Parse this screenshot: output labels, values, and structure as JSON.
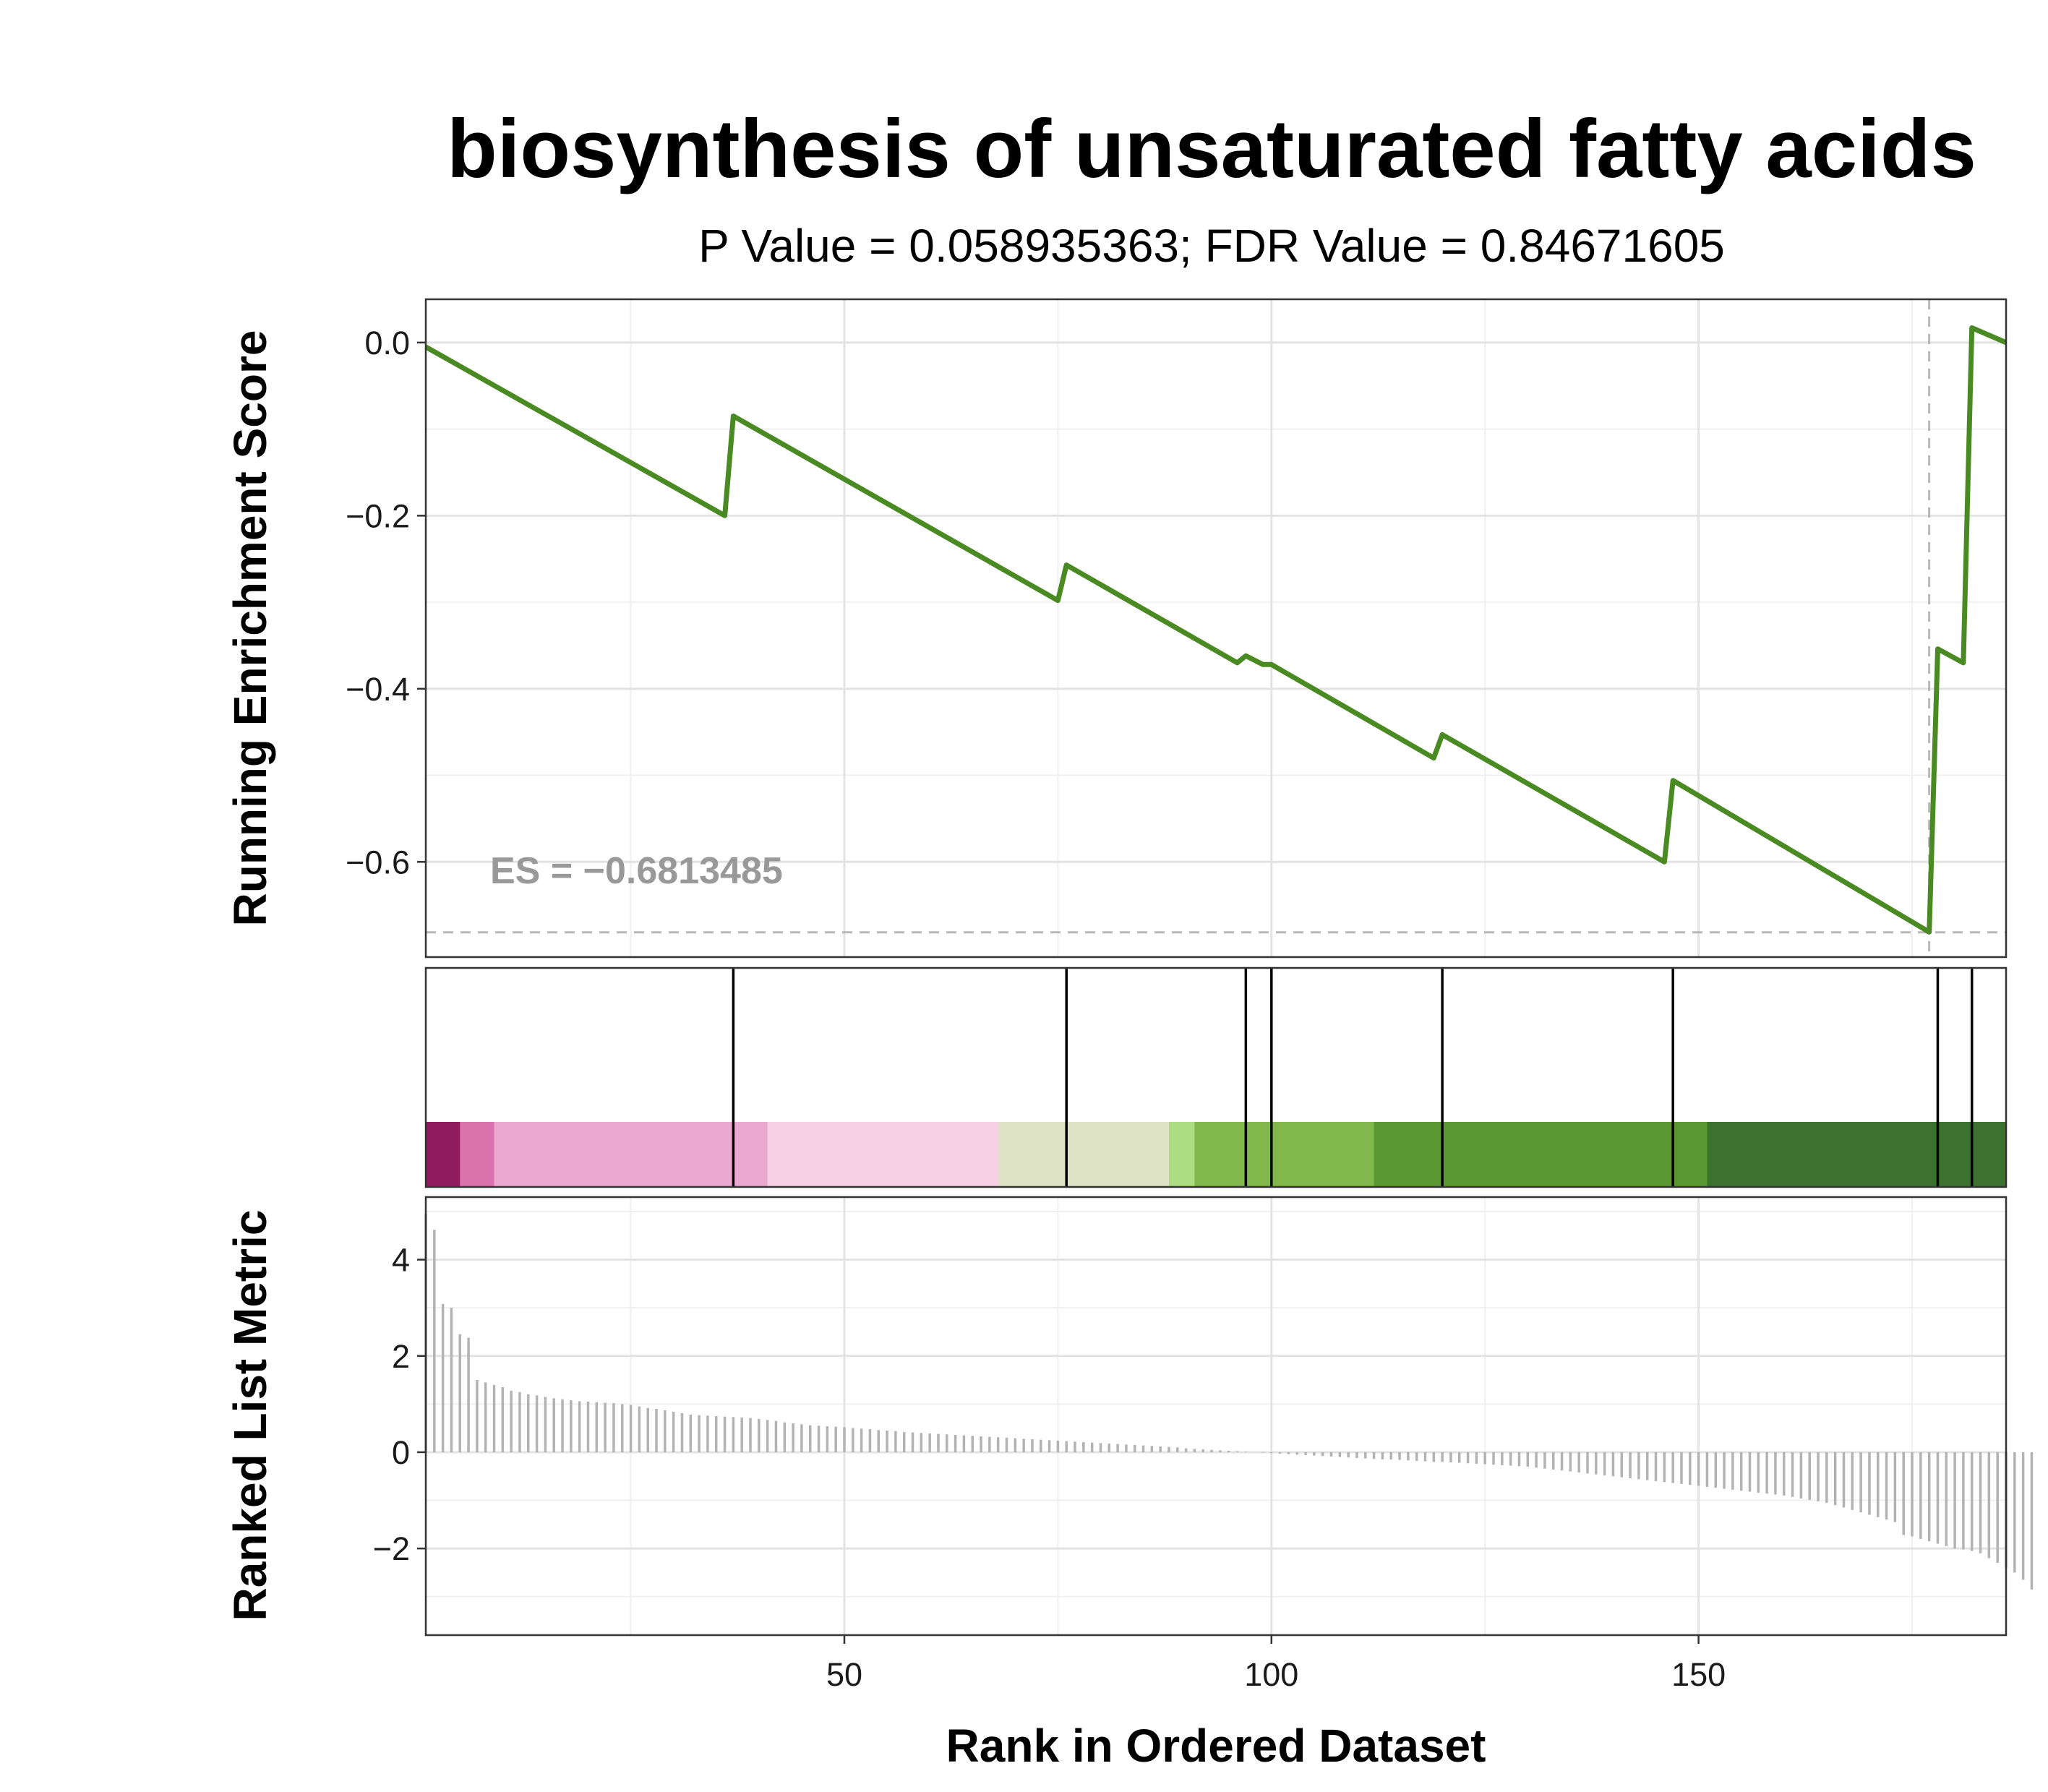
{
  "chart_data": {
    "type": "line",
    "title": "biosynthesis of unsaturated fatty acids",
    "subtitle": "P Value = 0.058935363; FDR Value = 0.84671605",
    "es_label": "ES = −0.6813485",
    "es_value": -0.6813485,
    "peak_rank": 177,
    "xlabel": "Rank in Ordered Dataset",
    "xlim": [
      1,
      186
    ],
    "x_ticks": [
      50,
      100,
      150
    ],
    "x_tick_labels": [
      "50",
      "100",
      "150"
    ],
    "panels": [
      {
        "name": "running-enrichment-score",
        "ylabel": "Running Enrichment Score",
        "ylim": [
          -0.71,
          0.05
        ],
        "y_ticks": [
          0.0,
          -0.2,
          -0.4,
          -0.6
        ],
        "y_tick_labels": [
          "0.0",
          "−0.2",
          "−0.4",
          "−0.6"
        ],
        "series": [
          {
            "color": "#4a8a22",
            "x": [
              1,
              36,
              37,
              75,
              76,
              96,
              97,
              99,
              100,
              119,
              120,
              146,
              147,
              177,
              178,
              181,
              182,
              186
            ],
            "y": [
              -0.005,
              -0.2,
              -0.085,
              -0.298,
              -0.257,
              -0.37,
              -0.362,
              -0.372,
              -0.372,
              -0.48,
              -0.453,
              -0.6,
              -0.506,
              -0.681,
              -0.354,
              -0.37,
              0.017,
              0.0
            ]
          }
        ]
      },
      {
        "name": "gene-hits",
        "hit_ranks": [
          37,
          76,
          97,
          100,
          120,
          147,
          178,
          182
        ],
        "heat_bands": [
          {
            "start": 1,
            "end": 5,
            "color": "#8e1b5d"
          },
          {
            "start": 5,
            "end": 9,
            "color": "#dc72ab"
          },
          {
            "start": 9,
            "end": 41,
            "color": "#eaa9cf"
          },
          {
            "start": 41,
            "end": 68,
            "color": "#f6d0e5"
          },
          {
            "start": 68,
            "end": 88,
            "color": "#e0e4c6"
          },
          {
            "start": 88,
            "end": 91,
            "color": "#addd82"
          },
          {
            "start": 91,
            "end": 112,
            "color": "#80b84c"
          },
          {
            "start": 112,
            "end": 151,
            "color": "#5a9733"
          },
          {
            "start": 151,
            "end": 186,
            "color": "#3c722d"
          }
        ]
      },
      {
        "name": "ranked-list-metric",
        "ylabel": "Ranked List Metric",
        "ylim": [
          -3.8,
          5.3
        ],
        "y_ticks": [
          4,
          2,
          0,
          -2
        ],
        "y_tick_labels": [
          "4",
          "2",
          "0",
          "−2"
        ],
        "bar_color": "#b3b3b3",
        "values": [
          4.95,
          4.62,
          3.08,
          3.0,
          2.45,
          2.38,
          1.5,
          1.45,
          1.4,
          1.35,
          1.28,
          1.25,
          1.2,
          1.18,
          1.15,
          1.12,
          1.1,
          1.08,
          1.06,
          1.05,
          1.04,
          1.03,
          1.02,
          1.0,
          0.98,
          0.95,
          0.92,
          0.9,
          0.87,
          0.84,
          0.81,
          0.78,
          0.77,
          0.76,
          0.75,
          0.74,
          0.73,
          0.72,
          0.71,
          0.69,
          0.67,
          0.65,
          0.62,
          0.6,
          0.58,
          0.56,
          0.55,
          0.54,
          0.53,
          0.52,
          0.5,
          0.49,
          0.48,
          0.46,
          0.45,
          0.44,
          0.42,
          0.41,
          0.4,
          0.39,
          0.38,
          0.37,
          0.36,
          0.35,
          0.34,
          0.33,
          0.32,
          0.31,
          0.3,
          0.29,
          0.28,
          0.27,
          0.26,
          0.25,
          0.24,
          0.23,
          0.22,
          0.21,
          0.2,
          0.19,
          0.18,
          0.17,
          0.16,
          0.15,
          0.14,
          0.13,
          0.12,
          0.11,
          0.1,
          0.08,
          0.07,
          0.06,
          0.05,
          0.04,
          0.03,
          0.02,
          0.01,
          0.0,
          -0.01,
          -0.02,
          -0.03,
          -0.04,
          -0.05,
          -0.06,
          -0.07,
          -0.08,
          -0.09,
          -0.1,
          -0.11,
          -0.12,
          -0.13,
          -0.14,
          -0.15,
          -0.15,
          -0.16,
          -0.17,
          -0.18,
          -0.19,
          -0.2,
          -0.2,
          -0.21,
          -0.22,
          -0.23,
          -0.24,
          -0.25,
          -0.26,
          -0.27,
          -0.28,
          -0.29,
          -0.3,
          -0.32,
          -0.34,
          -0.36,
          -0.38,
          -0.4,
          -0.42,
          -0.44,
          -0.46,
          -0.48,
          -0.5,
          -0.52,
          -0.54,
          -0.56,
          -0.58,
          -0.6,
          -0.62,
          -0.64,
          -0.66,
          -0.68,
          -0.7,
          -0.72,
          -0.74,
          -0.76,
          -0.78,
          -0.8,
          -0.82,
          -0.84,
          -0.86,
          -0.88,
          -0.9,
          -0.93,
          -0.96,
          -0.99,
          -1.02,
          -1.05,
          -1.1,
          -1.15,
          -1.2,
          -1.25,
          -1.3,
          -1.35,
          -1.4,
          -1.45,
          -1.72,
          -1.75,
          -1.8,
          -1.85,
          -1.9,
          -1.95,
          -2.0,
          -2.02,
          -2.05,
          -2.1,
          -2.2,
          -2.3,
          -2.4,
          -2.5,
          -2.65,
          -2.85
        ]
      }
    ]
  }
}
